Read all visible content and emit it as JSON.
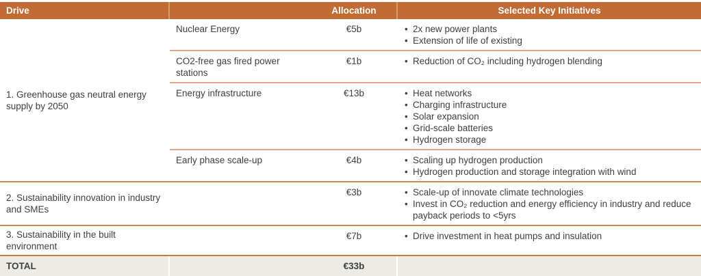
{
  "colors": {
    "header_bg": "#c16c35",
    "header_text": "#ffffff",
    "subrow_line": "#e0a583",
    "section_line": "#d28a5a",
    "total_line": "#c87945",
    "total_bg": "#edebe5",
    "body_text": "#3f3f3f"
  },
  "table": {
    "headers": {
      "drive": "Drive",
      "allocation": "Allocation",
      "initiatives": "Selected Key Initiatives"
    },
    "sections": [
      {
        "drive": "1. Greenhouse gas neutral energy supply by 2050",
        "rows": [
          {
            "name": "Nuclear Energy",
            "allocation": "€5b",
            "initiatives": [
              "2x new power plants",
              "Extension of life of existing"
            ]
          },
          {
            "name": "CO2-free gas fired power stations",
            "allocation": "€1b",
            "initiatives": [
              "Reduction of CO₂ including hydrogen blending"
            ]
          },
          {
            "name": "Energy infrastructure",
            "allocation": "€13b",
            "initiatives": [
              "Heat networks",
              "Charging infrastructure",
              "Solar expansion",
              "Grid-scale batteries",
              "Hydrogen storage"
            ]
          },
          {
            "name": "Early phase scale-up",
            "allocation": "€4b",
            "initiatives": [
              "Scaling up hydrogen production",
              "Hydrogen production and storage integration with wind"
            ]
          }
        ]
      },
      {
        "drive": "2. Sustainability innovation in industry and SMEs",
        "rows": [
          {
            "name": "",
            "allocation": "€3b",
            "initiatives": [
              "Scale-up of innovate climate technologies",
              "Invest in CO₂ reduction and energy efficiency in industry and reduce payback periods to <5yrs"
            ]
          }
        ]
      },
      {
        "drive": "3. Sustainability in the built environment",
        "rows": [
          {
            "name": "",
            "allocation": "€7b",
            "initiatives": [
              "Drive investment in heat pumps and insulation"
            ]
          }
        ]
      }
    ],
    "total": {
      "label": "TOTAL",
      "allocation": "€33b"
    }
  }
}
